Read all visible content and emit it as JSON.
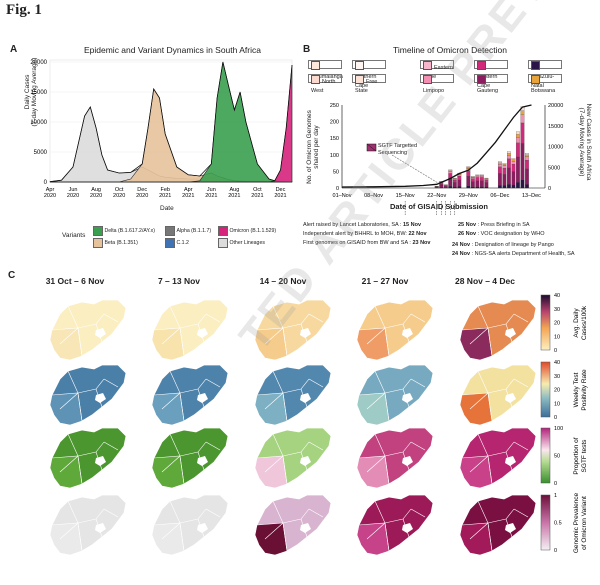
{
  "fig_title": "Fig. 1",
  "panel_a": {
    "label": "A",
    "title": "Epidemic and Variant Dynamics in South Africa",
    "ylabel": "Daily Cases\n(7-day Moving Average)",
    "xlabel": "Date",
    "yticks": [
      "0",
      "5000",
      "10000",
      "15000",
      "20000"
    ],
    "xticks": [
      "Apr\n2020",
      "Jun\n2020",
      "Aug\n2020",
      "Oct\n2020",
      "Dec\n2020",
      "Feb\n2021",
      "Apr\n2021",
      "Jun\n2021",
      "Aug\n2021",
      "Oct\n2021",
      "Dec\n2021"
    ],
    "legend_title": "Variants",
    "legend": [
      {
        "name": "Delta (B.1.617.2/AY.x)",
        "color": "#3aa04f"
      },
      {
        "name": "Alpha (B.1.1.7)",
        "color": "#777777"
      },
      {
        "name": "Omicron (B.1.1.529)",
        "color": "#d6237c"
      },
      {
        "name": "Beta (B.1.351)",
        "color": "#e7c39b"
      },
      {
        "name": "C.1.2",
        "color": "#3f73b3"
      },
      {
        "name": "Other Lineages",
        "color": "#dcdcdc"
      }
    ]
  },
  "chart_data": {
    "type": "area",
    "title": "Epidemic and Variant Dynamics in South Africa",
    "xlabel": "Date",
    "ylabel": "Daily Cases (7-day Moving Average)",
    "ylim": [
      0,
      20000
    ],
    "x_months_from_apr2020": [
      0,
      1,
      2,
      3,
      3.5,
      4,
      4.5,
      5,
      6,
      7,
      8,
      8.5,
      9,
      9.5,
      10,
      11,
      12,
      13,
      14,
      14.5,
      15,
      15.5,
      16,
      16.5,
      17,
      18,
      19,
      19.5,
      20,
      20.5,
      21
    ],
    "series": [
      {
        "name": "Other Lineages",
        "values": [
          50,
          300,
          2500,
          11000,
          12500,
          9000,
          4500,
          2000,
          1500,
          1600,
          2500,
          2000,
          1500,
          1000,
          800,
          600,
          500,
          500,
          600,
          500,
          400,
          300,
          200,
          150,
          120,
          100,
          100,
          80,
          60,
          50,
          50
        ]
      },
      {
        "name": "Beta (B.1.351)",
        "values": [
          0,
          0,
          0,
          0,
          0,
          0,
          0,
          0,
          0,
          500,
          3000,
          9000,
          15500,
          14000,
          8000,
          2500,
          1200,
          1000,
          1500,
          1000,
          700,
          400,
          200,
          100,
          80,
          60,
          40,
          30,
          20,
          10,
          0
        ]
      },
      {
        "name": "Delta (B.1.617.2/AY.x)",
        "values": [
          0,
          0,
          0,
          0,
          0,
          0,
          0,
          0,
          0,
          0,
          0,
          0,
          0,
          0,
          0,
          0,
          0,
          200,
          3000,
          14000,
          20000,
          16000,
          12000,
          15000,
          10000,
          3000,
          500,
          200,
          100,
          50,
          0
        ]
      },
      {
        "name": "Omicron (B.1.1.529)",
        "values": [
          0,
          0,
          0,
          0,
          0,
          0,
          0,
          0,
          0,
          0,
          0,
          0,
          0,
          0,
          0,
          0,
          0,
          0,
          0,
          0,
          0,
          0,
          0,
          0,
          0,
          0,
          0,
          200,
          2000,
          9000,
          19500
        ]
      }
    ]
  },
  "panel_b": {
    "label": "B",
    "title": "Timeline of Omicron Detection",
    "provinces": [
      {
        "name": "Mpumalanga",
        "color": "#fde9dc"
      },
      {
        "name": "Northern Cape",
        "color": "#fff6f2"
      },
      {
        "name": "Eastern Cape",
        "color": "#f7b6cc"
      },
      {
        "name": "Western Cape",
        "color": "#d12a7a"
      },
      {
        "name": "KwaZulu-Natal",
        "color": "#2b1548"
      },
      {
        "name": "North West",
        "color": "#fbd9cf"
      },
      {
        "name": "Free State",
        "color": "#fbe1d6"
      },
      {
        "name": "Limpopo",
        "color": "#f38fb2"
      },
      {
        "name": "Gauteng",
        "color": "#8b1c5f"
      },
      {
        "name": "Botswana",
        "color": "#e8a33c"
      }
    ],
    "ylabel_left": "No. of Omicron Genomes\nshared per day",
    "ylabel_right": "New Cases in South Africa\n(7-day Moving Average)",
    "xlabel": "Date of GISAID Submission",
    "yticks_left": [
      "0",
      "50",
      "100",
      "150",
      "200",
      "250"
    ],
    "yticks_right": [
      "0",
      "5000",
      "10000",
      "15000",
      "20000"
    ],
    "xticks": [
      "01–Nov",
      "08–Nov",
      "15–Nov",
      "22–Nov",
      "29–Nov",
      "06–Dec",
      "13–Dec"
    ],
    "sgtf_label": "SGTF Targetted\nSequencing",
    "events_left": [
      {
        "text": "Alert raised by Lancet Laboratories, SA : ",
        "bold": "15 Nov"
      },
      {
        "text": "Independent alert by BHHRL to MOH, BW: ",
        "bold": "22 Nov"
      },
      {
        "text": "First genomes on GISAID from BW and SA : ",
        "bold": "23 Nov"
      }
    ],
    "events_right": [
      {
        "bold": "25 Nov",
        "text": " : Press Briefing in SA"
      },
      {
        "bold": "26 Nov",
        "text": " : VOC designation by WHO"
      },
      {
        "bold": "24 Nov",
        "text": " : Designation of lineage by Pango"
      },
      {
        "bold": "24 Nov",
        "text": " : NGS-SA alerts Department of Health, SA"
      }
    ],
    "bars": [
      {
        "day": "22–Nov",
        "value": 5
      },
      {
        "day": "23–Nov",
        "value": 20
      },
      {
        "day": "24–Nov",
        "value": 10
      },
      {
        "day": "25–Nov",
        "value": 55
      },
      {
        "day": "26–Nov",
        "value": 30
      },
      {
        "day": "27–Nov",
        "value": 45
      },
      {
        "day": "29–Nov",
        "value": 65
      },
      {
        "day": "30–Nov",
        "value": 35
      },
      {
        "day": "01–Dec",
        "value": 40
      },
      {
        "day": "02–Dec",
        "value": 40
      },
      {
        "day": "03–Dec",
        "value": 30
      },
      {
        "day": "06–Dec",
        "value": 80
      },
      {
        "day": "07–Dec",
        "value": 75
      },
      {
        "day": "08–Dec",
        "value": 110
      },
      {
        "day": "09–Dec",
        "value": 90
      },
      {
        "day": "10–Dec",
        "value": 170
      },
      {
        "day": "11–Dec",
        "value": 245
      },
      {
        "day": "12–Dec",
        "value": 105
      }
    ]
  },
  "panel_c": {
    "label": "C",
    "weeks": [
      "31 Oct – 6 Nov",
      "7 – 13 Nov",
      "14 – 20 Nov",
      "21 – 27 Nov",
      "28 Nov – 4 Dec"
    ],
    "rows": [
      {
        "metric": "Avg. Daily\nCases/100k",
        "ticks": [
          "40",
          "30",
          "20",
          "10",
          "0"
        ]
      },
      {
        "metric": "Weekly Test\nPositivity Rate",
        "ticks": [
          "40",
          "30",
          "20",
          "10",
          "0"
        ]
      },
      {
        "metric": "Proportion of\nSGTF tests",
        "ticks": [
          "100",
          "50",
          "0"
        ]
      },
      {
        "metric": "Genomic Prevalence\nof Omicron Variant",
        "ticks": [
          "1",
          "0.5",
          "0"
        ]
      }
    ]
  },
  "watermark": "TED ARTICLE PREVIEW"
}
